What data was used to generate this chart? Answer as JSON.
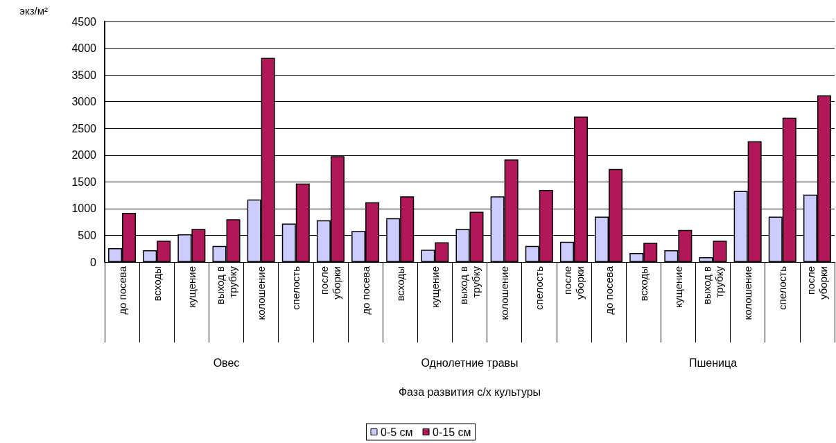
{
  "chart_data": {
    "type": "bar",
    "ylabel": "экз/м²",
    "categories": [
      "до посева",
      "всходы",
      "кущение",
      "выход в трубку",
      "колошение",
      "спелость",
      "после уборки",
      "до посева",
      "всходы",
      "кущение",
      "выход в трубку",
      "колошение",
      "спелость",
      "после уборки",
      "до посева",
      "всходы",
      "кущение",
      "выход в трубку",
      "колошение",
      "спелость",
      "после уборки"
    ],
    "series": [
      {
        "name": "0-5 см",
        "color": "#ccccff",
        "values": [
          260,
          220,
          520,
          300,
          1170,
          720,
          780,
          580,
          820,
          230,
          620,
          1230,
          300,
          380,
          850,
          170,
          220,
          90,
          1330,
          850,
          1260
        ]
      },
      {
        "name": "0-15 см",
        "color": "#b0185a",
        "values": [
          920,
          400,
          620,
          800,
          3820,
          1470,
          1980,
          1120,
          1230,
          370,
          940,
          1920,
          1350,
          2720,
          1740,
          360,
          600,
          400,
          2260,
          2700,
          3120
        ]
      }
    ],
    "annotations": [
      "Овес",
      "Однолетние травы",
      "Пшеница",
      "Фаза развития с/х культуры"
    ],
    "ylim": [
      0,
      4500
    ],
    "yticks": [
      0,
      500,
      1000,
      1500,
      2000,
      2500,
      3000,
      3500,
      4000,
      4500
    ],
    "grid": "y",
    "legend": "bottom"
  }
}
